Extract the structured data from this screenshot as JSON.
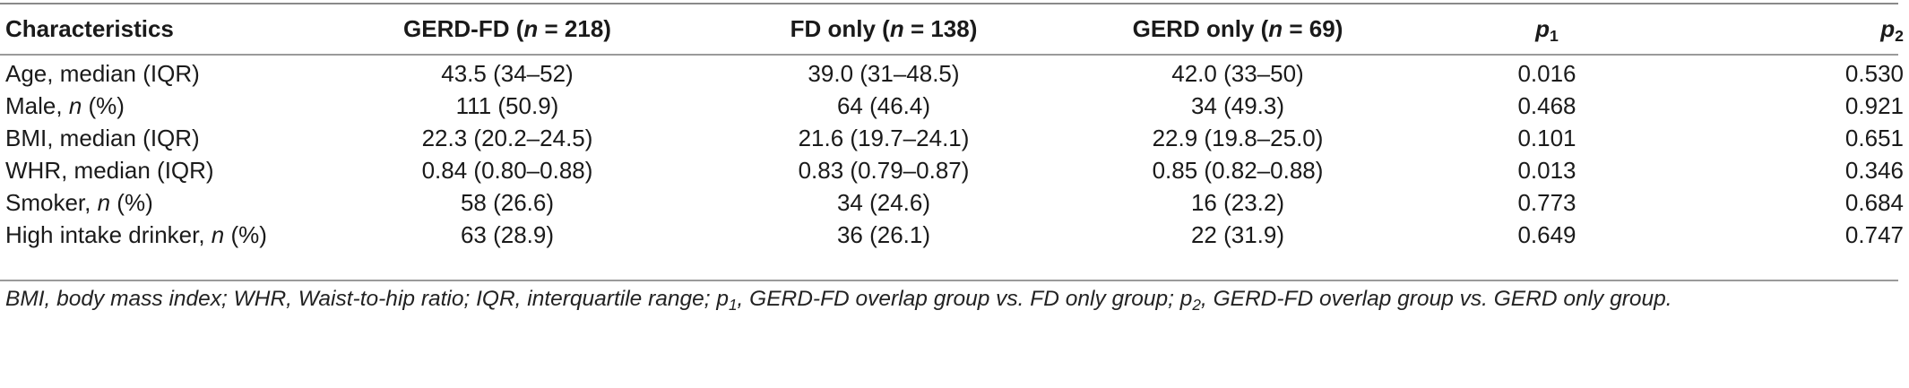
{
  "header": {
    "characteristics": "Characteristics",
    "gerd_fd": {
      "name": "GERD-FD (",
      "n_symbol": "n",
      "n_value": " = 218)"
    },
    "fd_only": {
      "name": "FD only (",
      "n_symbol": "n",
      "n_value": " = 138)"
    },
    "gerd_only": {
      "name": "GERD only (",
      "n_symbol": "n",
      "n_value": " = 69)"
    },
    "p1": {
      "symbol": "p",
      "subscript": "1"
    },
    "p2": {
      "symbol": "p",
      "subscript": "2"
    }
  },
  "rows": [
    {
      "label_pre": "Age, median (IQR)",
      "label_italic": "",
      "label_post": "",
      "gerd_fd": "43.5 (34–52)",
      "fd_only": "39.0 (31–48.5)",
      "gerd_only": "42.0 (33–50)",
      "p1": "0.016",
      "p2": "0.530"
    },
    {
      "label_pre": "Male, ",
      "label_italic": "n",
      "label_post": " (%)",
      "gerd_fd": "111 (50.9)",
      "fd_only": "64 (46.4)",
      "gerd_only": "34 (49.3)",
      "p1": "0.468",
      "p2": "0.921"
    },
    {
      "label_pre": "BMI, median (IQR)",
      "label_italic": "",
      "label_post": "",
      "gerd_fd": "22.3 (20.2–24.5)",
      "fd_only": "21.6 (19.7–24.1)",
      "gerd_only": "22.9 (19.8–25.0)",
      "p1": "0.101",
      "p2": "0.651"
    },
    {
      "label_pre": "WHR, median (IQR)",
      "label_italic": "",
      "label_post": "",
      "gerd_fd": "0.84 (0.80–0.88)",
      "fd_only": "0.83 (0.79–0.87)",
      "gerd_only": "0.85 (0.82–0.88)",
      "p1": "0.013",
      "p2": "0.346"
    },
    {
      "label_pre": "Smoker, ",
      "label_italic": "n",
      "label_post": " (%)",
      "gerd_fd": "58 (26.6)",
      "fd_only": "34 (24.6)",
      "gerd_only": "16 (23.2)",
      "p1": "0.773",
      "p2": "0.684"
    },
    {
      "label_pre": "High intake drinker, ",
      "label_italic": "n",
      "label_post": " (%)",
      "gerd_fd": "63 (28.9)",
      "fd_only": "36 (26.1)",
      "gerd_only": "22 (31.9)",
      "p1": "0.649",
      "p2": "0.747"
    }
  ],
  "footnote": {
    "part1": "BMI, body mass index; WHR, Waist-to-hip ratio; IQR, interquartile range; p",
    "sub1": "1",
    "part2": ", GERD-FD overlap group vs. FD only group; p",
    "sub2": "2",
    "part3": ", GERD-FD overlap group vs. GERD only group."
  }
}
